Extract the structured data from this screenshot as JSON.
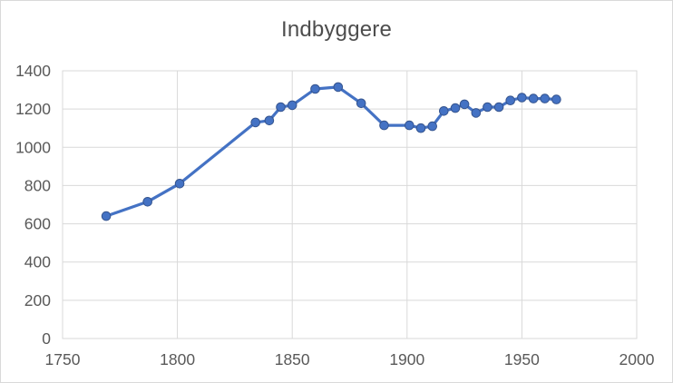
{
  "chart_data": {
    "type": "line",
    "title": "Indbyggere",
    "x": [
      1769,
      1787,
      1801,
      1834,
      1840,
      1845,
      1850,
      1860,
      1870,
      1880,
      1890,
      1901,
      1906,
      1911,
      1916,
      1921,
      1925,
      1930,
      1935,
      1940,
      1945,
      1950,
      1955,
      1960,
      1965
    ],
    "series": [
      {
        "name": "Indbyggere",
        "values": [
          640,
          715,
          810,
          1130,
          1140,
          1210,
          1220,
          1305,
          1315,
          1230,
          1115,
          1115,
          1100,
          1110,
          1190,
          1205,
          1225,
          1180,
          1210,
          1210,
          1245,
          1260,
          1255,
          1255,
          1250
        ]
      }
    ],
    "xlabel": "",
    "ylabel": "",
    "xlim": [
      1750,
      2000
    ],
    "ylim": [
      0,
      1400
    ],
    "xticks": [
      1750,
      1800,
      1850,
      1900,
      1950,
      2000
    ],
    "yticks": [
      0,
      200,
      400,
      600,
      800,
      1000,
      1200,
      1400
    ],
    "grid": true,
    "legend": "none",
    "colors": {
      "line": "#4472C4",
      "marker_fill": "#4472C4",
      "marker_edge": "#35548e",
      "gridline": "#d9d9d9",
      "plot_border": "#d9d9d9",
      "tick_label": "#595959",
      "title": "#4d4d4d",
      "background": "#ffffff"
    }
  }
}
